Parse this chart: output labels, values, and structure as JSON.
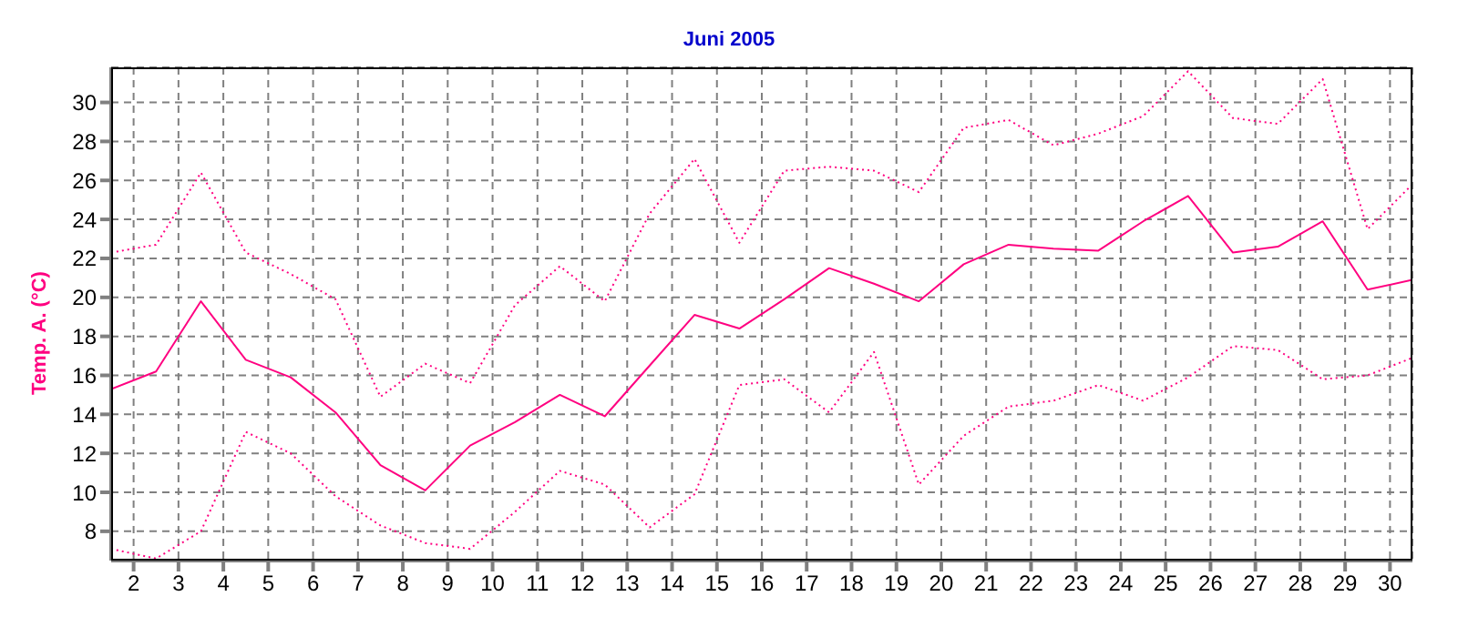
{
  "chart_data": {
    "type": "line",
    "title": "Juni 2005",
    "ylabel": "Temp. A. (°C)",
    "x": [
      1.5,
      2.5,
      3.5,
      4.5,
      5.5,
      6.5,
      7.5,
      8.5,
      9.5,
      10.5,
      11.5,
      12.5,
      13.5,
      14.5,
      15.5,
      16.5,
      17.5,
      18.5,
      19.5,
      20.5,
      21.5,
      22.5,
      23.5,
      24.5,
      25.5,
      26.5,
      27.5,
      28.5,
      29.5,
      30.5
    ],
    "series": [
      {
        "color": "#ff0080",
        "line_style": "dotted",
        "values": [
          22.3,
          22.7,
          26.4,
          22.3,
          21.2,
          19.9,
          14.9,
          16.6,
          15.6,
          19.6,
          21.6,
          19.8,
          24.3,
          27.1,
          22.8,
          26.5,
          26.7,
          26.5,
          25.4,
          28.7,
          29.1,
          27.8,
          28.4,
          29.3,
          31.6,
          29.2,
          28.9,
          31.2,
          23.5,
          25.8
        ]
      },
      {
        "color": "#ff0080",
        "line_style": "solid",
        "values": [
          15.3,
          16.2,
          19.8,
          16.8,
          15.9,
          14.1,
          11.4,
          10.1,
          12.4,
          13.6,
          15.0,
          13.9,
          16.5,
          19.1,
          18.4,
          19.9,
          21.5,
          20.7,
          19.8,
          21.7,
          22.7,
          22.5,
          22.4,
          23.9,
          25.2,
          22.3,
          22.6,
          23.9,
          20.4,
          20.9
        ]
      },
      {
        "color": "#ff0080",
        "line_style": "dotted",
        "values": [
          7.1,
          6.6,
          8.0,
          13.1,
          12.0,
          9.8,
          8.3,
          7.4,
          7.1,
          9.0,
          11.1,
          10.4,
          8.2,
          9.9,
          15.5,
          15.8,
          14.1,
          17.2,
          10.4,
          12.9,
          14.4,
          14.7,
          15.5,
          14.7,
          15.9,
          17.5,
          17.3,
          15.8,
          16.0,
          16.9
        ]
      }
    ],
    "xlim": [
      1.5,
      30.5
    ],
    "xticks": [
      2,
      3,
      4,
      5,
      6,
      7,
      8,
      9,
      10,
      11,
      12,
      13,
      14,
      15,
      16,
      17,
      18,
      19,
      20,
      21,
      22,
      23,
      24,
      25,
      26,
      27,
      28,
      29,
      30
    ],
    "ylim": [
      6.5,
      31.8
    ],
    "yticks": [
      8,
      10,
      12,
      14,
      16,
      18,
      20,
      22,
      24,
      26,
      28,
      30
    ],
    "grid": true,
    "legend": false,
    "marker": "none"
  }
}
